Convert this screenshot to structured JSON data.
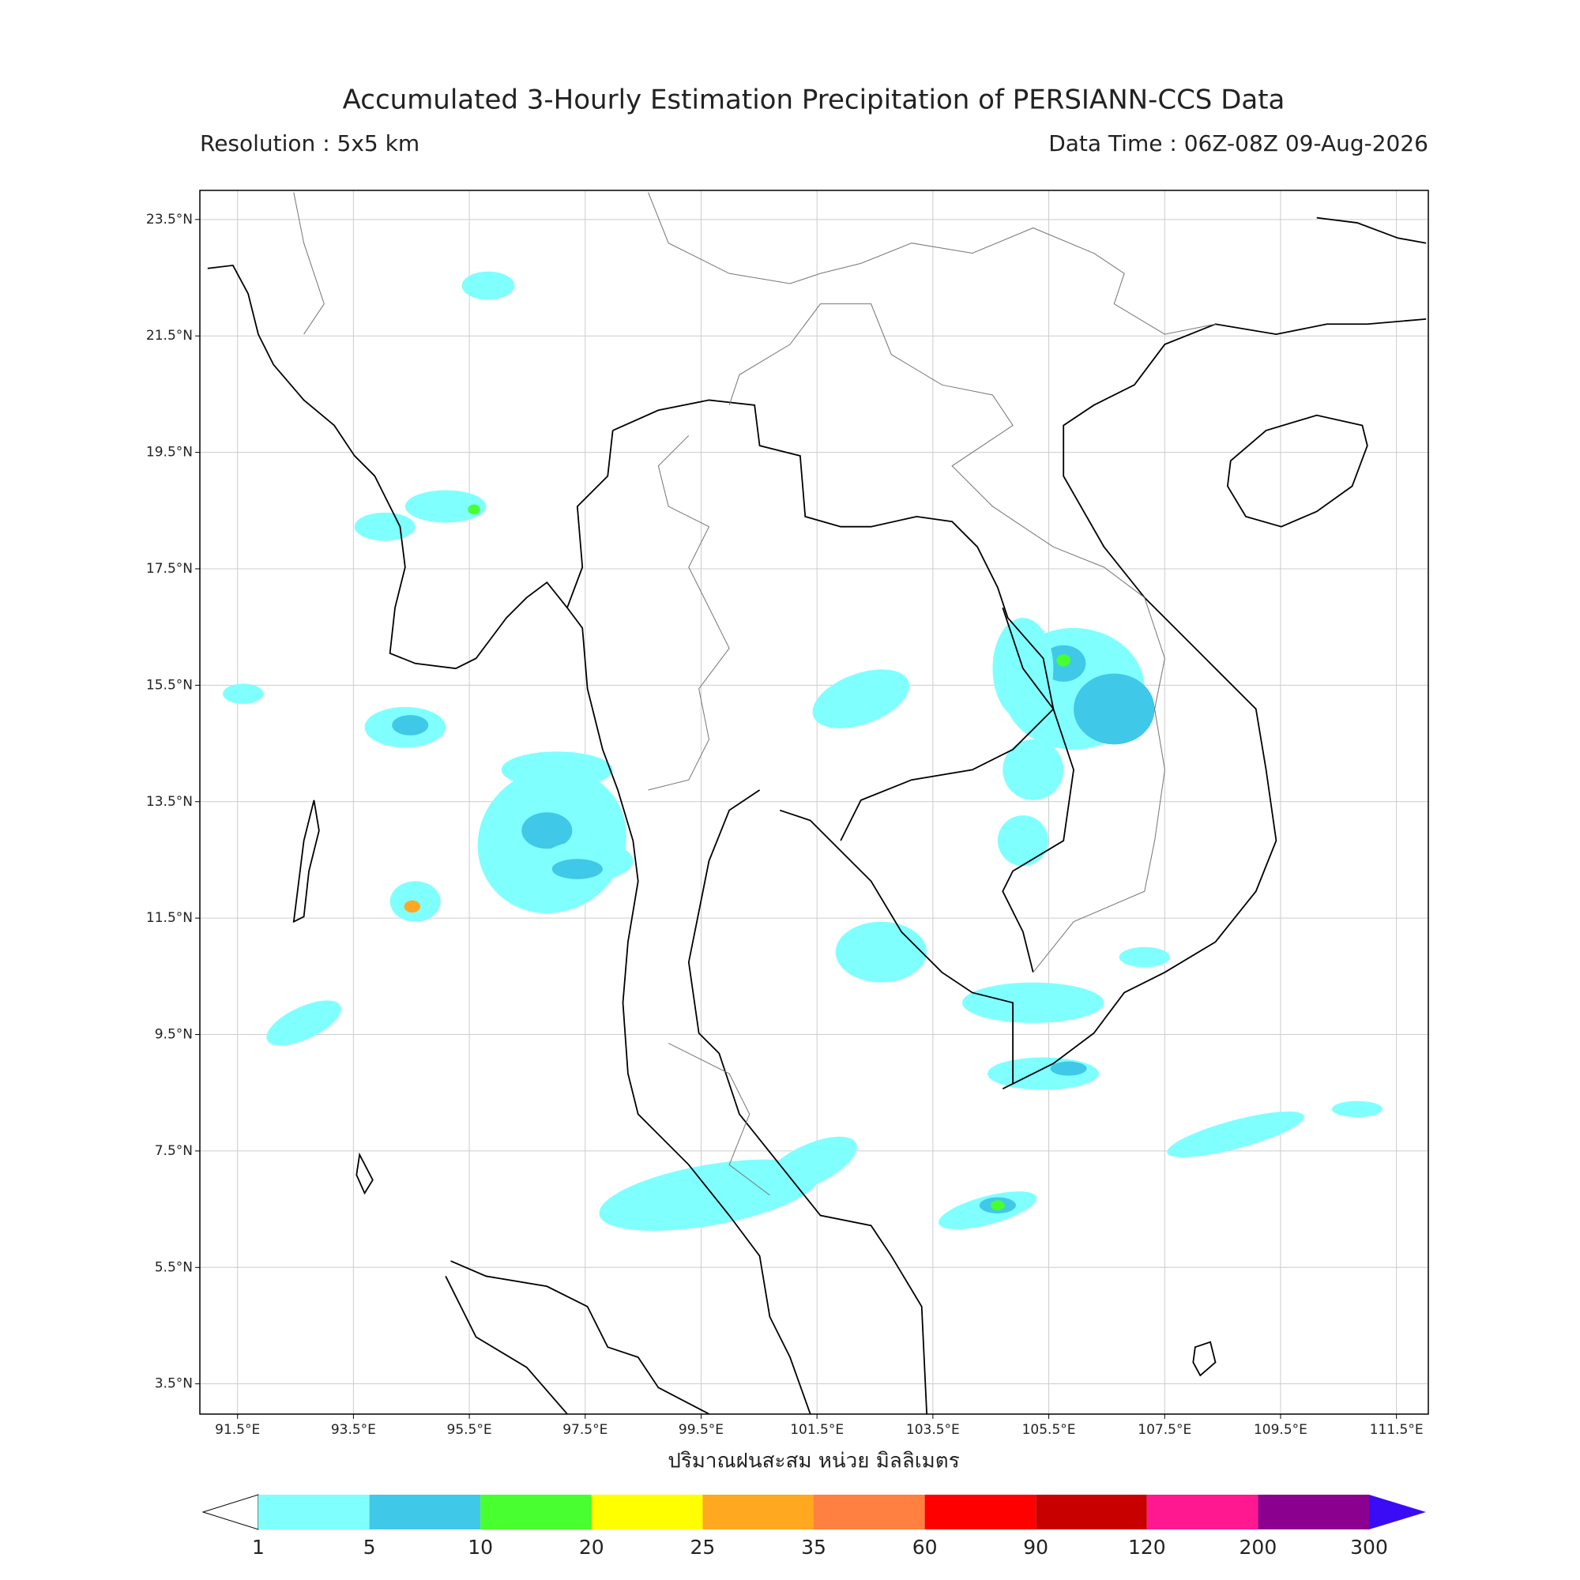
{
  "title": "Accumulated 3-Hourly Estimation Precipitation of PERSIANN-CCS Data",
  "resolution": "Resolution : 5x5 km",
  "data_time": "Data Time : 06Z-08Z 09-Aug-2026",
  "map": {
    "lon_range": [
      90.85,
      112.05
    ],
    "lat_range": [
      2.98,
      24.0
    ],
    "grid": true,
    "lon_ticks": [
      {
        "value": 91.5,
        "label": "91.5°E"
      },
      {
        "value": 93.5,
        "label": "93.5°E"
      },
      {
        "value": 95.5,
        "label": "95.5°E"
      },
      {
        "value": 97.5,
        "label": "97.5°E"
      },
      {
        "value": 99.5,
        "label": "99.5°E"
      },
      {
        "value": 101.5,
        "label": "101.5°E"
      },
      {
        "value": 103.5,
        "label": "103.5°E"
      },
      {
        "value": 105.5,
        "label": "105.5°E"
      },
      {
        "value": 107.5,
        "label": "107.5°E"
      },
      {
        "value": 109.5,
        "label": "109.5°E"
      },
      {
        "value": 111.5,
        "label": "111.5°E"
      }
    ],
    "lat_ticks": [
      {
        "value": 23.5,
        "label": "23.5°N"
      },
      {
        "value": 21.5,
        "label": "21.5°N"
      },
      {
        "value": 19.5,
        "label": "19.5°N"
      },
      {
        "value": 17.5,
        "label": "17.5°N"
      },
      {
        "value": 15.5,
        "label": "15.5°N"
      },
      {
        "value": 13.5,
        "label": "13.5°N"
      },
      {
        "value": 11.5,
        "label": "11.5°N"
      },
      {
        "value": 9.5,
        "label": "9.5°N"
      },
      {
        "value": 7.5,
        "label": "7.5°N"
      },
      {
        "value": 5.5,
        "label": "5.5°N"
      },
      {
        "value": 3.5,
        "label": "3.5°N"
      }
    ],
    "x_label": "ปริมาณฝนสะสม หน่วย มิลลิเมตร"
  },
  "colorbar": {
    "levels": [
      1,
      5,
      10,
      20,
      25,
      35,
      60,
      90,
      120,
      200,
      300
    ],
    "colors": [
      "#80ffff",
      "#40c8e8",
      "#48ff30",
      "#ffff00",
      "#ffa820",
      "#ff8040",
      "#ff0000",
      "#c80000",
      "#ff1890",
      "#8c0090"
    ],
    "under_color": "#ffffff",
    "over_color": "#3a0cf5"
  }
}
